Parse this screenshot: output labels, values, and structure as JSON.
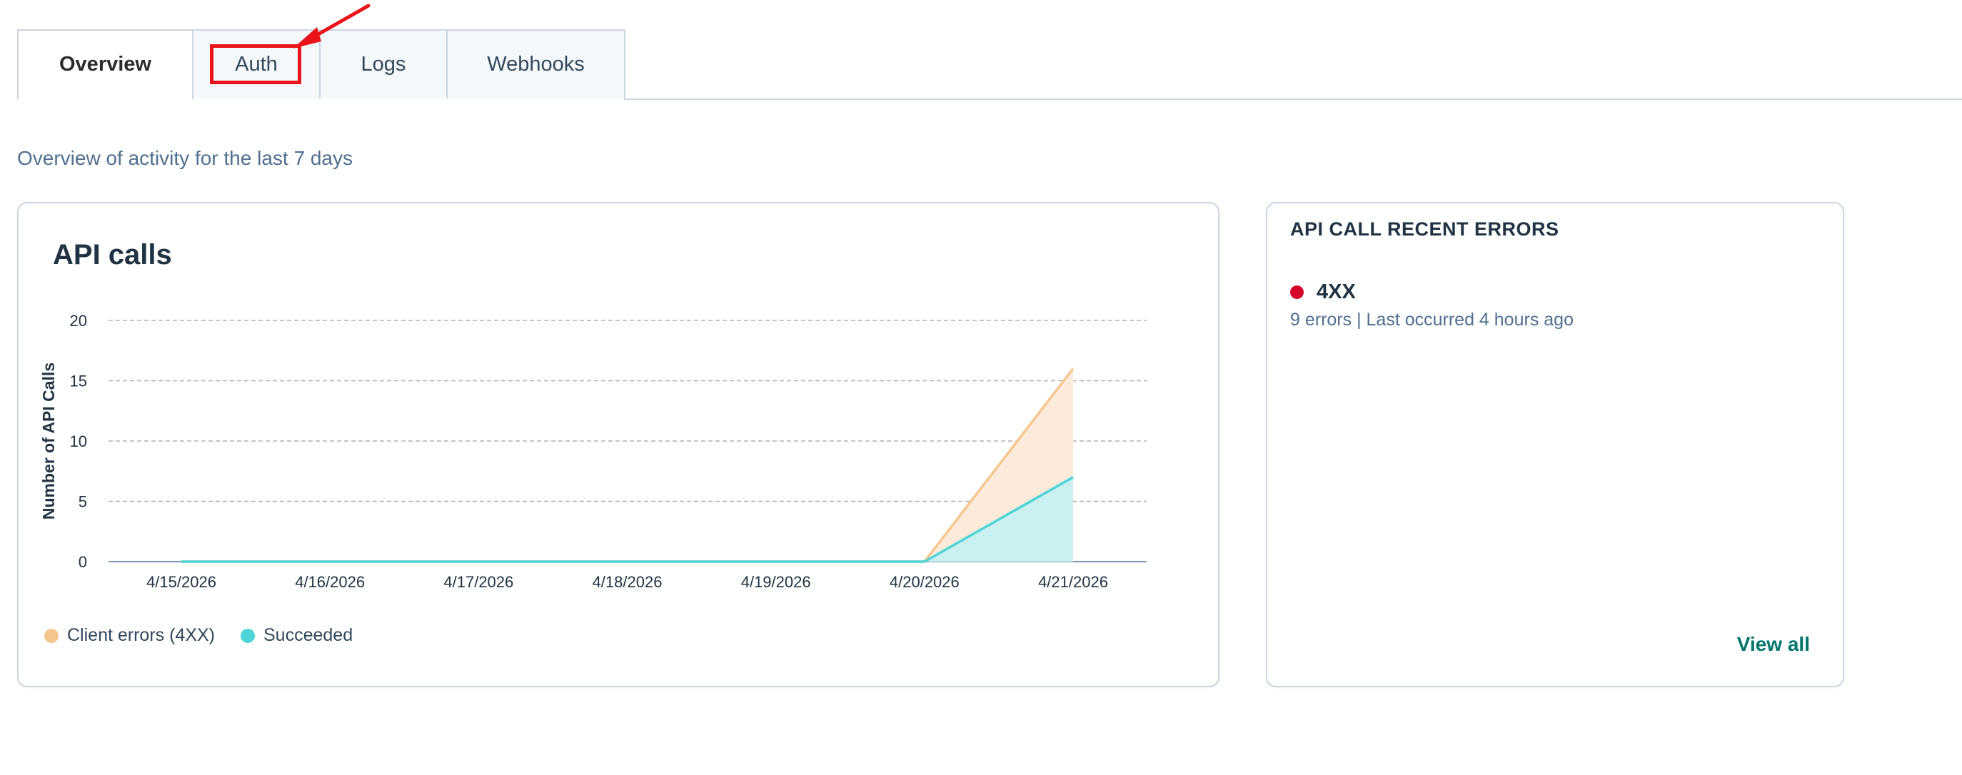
{
  "tabs": [
    {
      "label": "Overview",
      "active": true
    },
    {
      "label": "Auth",
      "active": false
    },
    {
      "label": "Logs",
      "active": false
    },
    {
      "label": "Webhooks",
      "active": false
    }
  ],
  "subtitle": "Overview of activity for the last 7 days",
  "api_calls_card": {
    "title": "API calls"
  },
  "chart_data": {
    "type": "area",
    "title": "API calls",
    "xlabel": "",
    "ylabel": "Number of API Calls",
    "categories": [
      "4/15/2026",
      "4/16/2026",
      "4/17/2026",
      "4/18/2026",
      "4/19/2026",
      "4/20/2026",
      "4/21/2026"
    ],
    "yticks": [
      "0",
      "5",
      "10",
      "15",
      "20"
    ],
    "ylim": [
      0,
      20
    ],
    "grid": true,
    "stacked": true,
    "legend_position": "bottom-left",
    "series": [
      {
        "name": "Succeeded",
        "values": [
          0,
          0,
          0,
          0,
          0,
          0,
          7
        ],
        "color": "#4fd4d8",
        "fill": "#cbf0f1"
      },
      {
        "name": "Client errors (4XX)",
        "values": [
          0,
          0,
          0,
          0,
          0,
          0,
          9
        ],
        "color": "#f5c78e",
        "fill": "#fcebdb"
      }
    ],
    "legend_order": [
      "Client errors (4XX)",
      "Succeeded"
    ]
  },
  "errors_card": {
    "title": "API CALL RECENT ERRORS",
    "items": [
      {
        "code": "4XX",
        "detail": "9 errors | Last occurred 4 hours ago",
        "color": "#d6052b"
      }
    ],
    "view_all_label": "View all"
  },
  "legend": {
    "client_errors_label": "Client errors (4XX)",
    "succeeded_label": "Succeeded",
    "client_errors_color": "#f5c78e",
    "succeeded_color": "#4fd4d8"
  },
  "annotation": {
    "highlight_color": "#e8141a"
  }
}
